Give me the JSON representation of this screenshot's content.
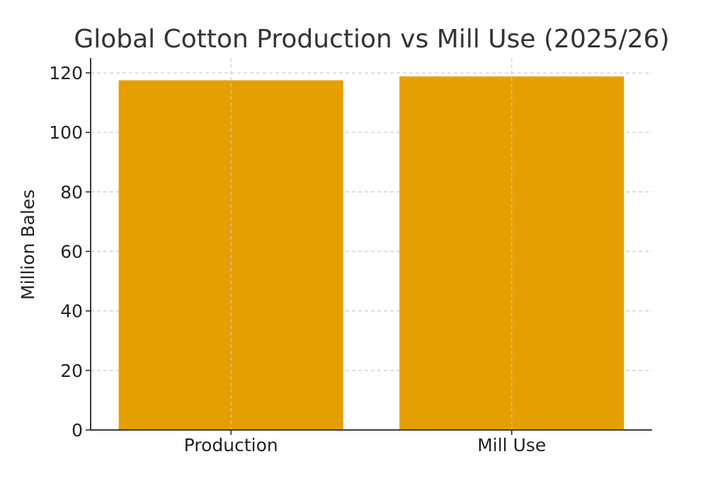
{
  "chart_data": {
    "type": "bar",
    "title": "Global Cotton Production vs Mill Use (2025/26)",
    "xlabel": "",
    "ylabel": "Million Bales",
    "categories": [
      "Production",
      "Mill Use"
    ],
    "values": [
      117.5,
      118.8
    ],
    "ylim": [
      0,
      125
    ],
    "yticks": [
      0,
      20,
      40,
      60,
      80,
      100,
      120
    ],
    "bar_color": "#E69F00",
    "grid": true,
    "grid_color": "#c8c8c8",
    "legend": "none"
  }
}
